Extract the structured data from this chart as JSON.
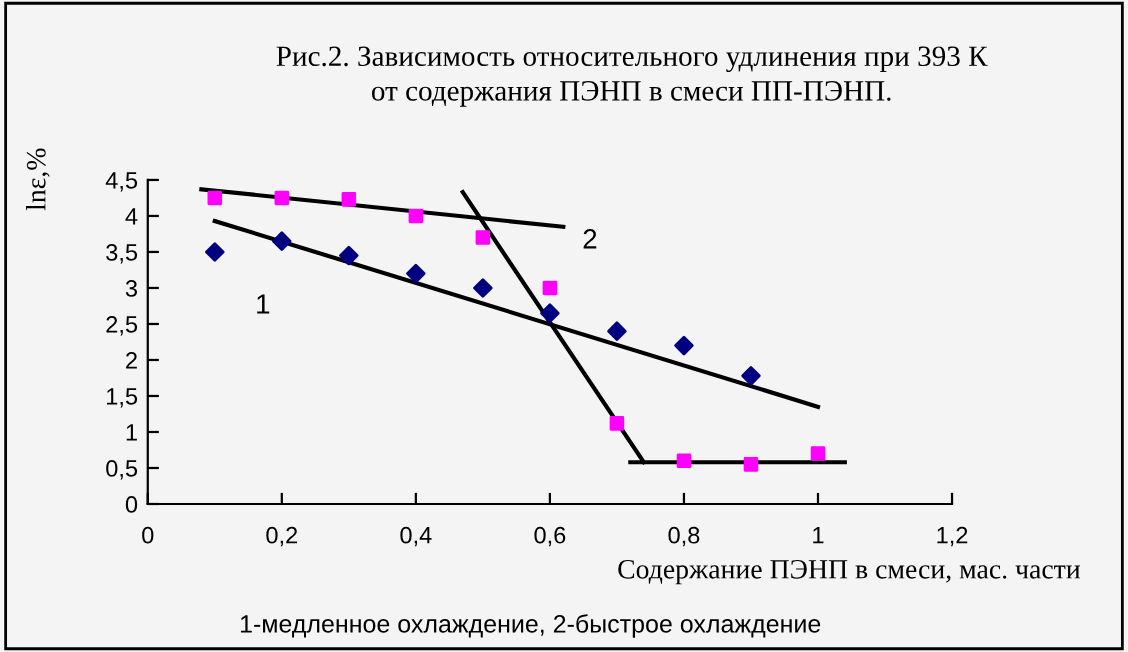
{
  "chart_data": {
    "type": "scatter",
    "title": "Рис.2. Зависимость относительного удлинения при 393 К\nот содержания ПЭНП в смеси ПП-ПЭНП.",
    "xlabel": "Содержание ПЭНП в смеси, мас. части",
    "ylabel": "lnε,%",
    "xlim": [
      0,
      1.2
    ],
    "xticks": [
      0,
      {
        "value": 0.2,
        "label": "0,2"
      },
      {
        "value": 0.4,
        "label": "0,4"
      },
      {
        "value": 0.6,
        "label": "0,6"
      },
      {
        "value": 0.8,
        "label": "0,8"
      },
      1,
      {
        "value": 1.2,
        "label": "1,2"
      }
    ],
    "ylim": [
      0,
      4.5
    ],
    "yticks": [
      0,
      {
        "value": 0.5,
        "label": "0,5"
      },
      1,
      {
        "value": 1.5,
        "label": "1,5"
      },
      2,
      {
        "value": 2.5,
        "label": "2,5"
      },
      3,
      {
        "value": 3.5,
        "label": "3,5"
      },
      4,
      {
        "value": 4.5,
        "label": "4,5"
      }
    ],
    "grid": false,
    "legend": false,
    "series": [
      {
        "color": "#000080",
        "marker": "diamond",
        "x": [
          0.1,
          0.2,
          0.3,
          0.4,
          0.5,
          0.6,
          0.7,
          0.8,
          0.9
        ],
        "values": [
          3.5,
          3.65,
          3.45,
          3.2,
          3.0,
          2.65,
          2.4,
          2.2,
          1.78
        ]
      },
      {
        "color": "#ff00ff",
        "marker": "square",
        "x": [
          0.1,
          0.2,
          0.3,
          0.4,
          0.5,
          0.6,
          0.7,
          0.8,
          0.9,
          1.0
        ],
        "values": [
          4.25,
          4.25,
          4.23,
          4.0,
          3.7,
          3.0,
          1.12,
          0.6,
          0.55,
          0.7
        ]
      },
      {
        "type": "line",
        "color": "#000000",
        "line_style": "solid",
        "x": [
          0.1,
          1.0
        ],
        "values": [
          3.93,
          1.35
        ]
      },
      {
        "type": "line",
        "color": "#000000",
        "line_style": "solid",
        "x": [
          0.08,
          0.62
        ],
        "values": [
          4.37,
          3.85
        ]
      },
      {
        "type": "line",
        "color": "#000000",
        "line_style": "solid",
        "x": [
          0.47,
          0.74
        ],
        "values": [
          4.33,
          0.58
        ]
      },
      {
        "type": "line",
        "color": "#000000",
        "line_style": "solid",
        "x": [
          0.72,
          1.04
        ],
        "values": [
          0.58,
          0.58
        ]
      }
    ],
    "annotations": [
      "1",
      "2",
      "1-медленное охлаждение, 2-быстрое охлаждение"
    ]
  }
}
